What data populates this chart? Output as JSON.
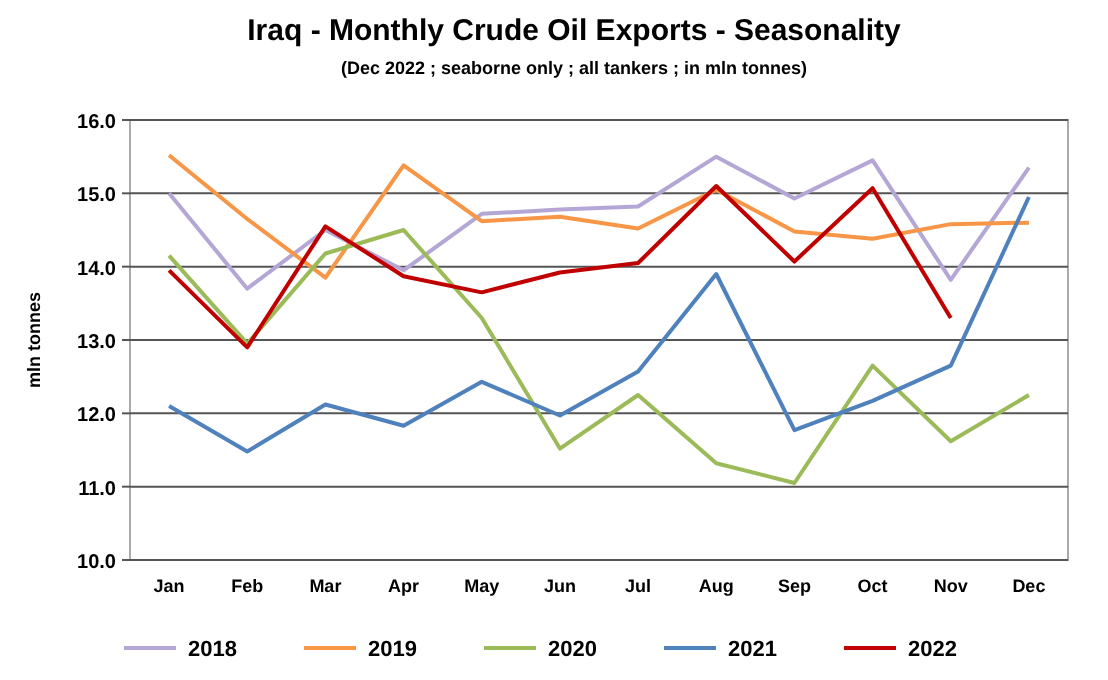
{
  "chart_data": {
    "type": "line",
    "title": "Iraq - Monthly Crude Oil Exports - Seasonality",
    "subtitle": "(Dec 2022 ; seaborne only ; all tankers ; in mln tonnes)",
    "ylabel": "mln tonnes",
    "categories": [
      "Jan",
      "Feb",
      "Mar",
      "Apr",
      "May",
      "Jun",
      "Jul",
      "Aug",
      "Sep",
      "Oct",
      "Nov",
      "Dec"
    ],
    "series": [
      {
        "name": "2018",
        "color": "#b4a7d6",
        "values": [
          15.0,
          13.7,
          14.5,
          13.95,
          14.72,
          14.78,
          14.82,
          15.5,
          14.93,
          15.45,
          13.82,
          15.35
        ]
      },
      {
        "name": "2019",
        "color": "#f79646",
        "values": [
          15.52,
          14.65,
          13.85,
          15.38,
          14.62,
          14.68,
          14.52,
          15.05,
          14.48,
          14.38,
          14.58,
          14.6
        ]
      },
      {
        "name": "2020",
        "color": "#9bbb59",
        "values": [
          14.15,
          12.95,
          14.18,
          14.5,
          13.3,
          11.52,
          12.25,
          11.32,
          11.05,
          12.65,
          11.62,
          12.25
        ]
      },
      {
        "name": "2021",
        "color": "#4f81bd",
        "values": [
          12.1,
          11.48,
          12.12,
          11.83,
          12.43,
          11.97,
          12.57,
          13.9,
          11.77,
          12.17,
          12.65,
          14.95
        ]
      },
      {
        "name": "2022",
        "color": "#c00000",
        "values": [
          13.95,
          12.9,
          14.55,
          13.87,
          13.65,
          13.92,
          14.05,
          15.1,
          14.07,
          15.07,
          13.3,
          null
        ]
      }
    ],
    "ylim": [
      10,
      16
    ],
    "yticks": [
      {
        "value": 10,
        "label": "10.0"
      },
      {
        "value": 11,
        "label": "11.0"
      },
      {
        "value": 12,
        "label": "12.0"
      },
      {
        "value": 13,
        "label": "13.0"
      },
      {
        "value": 14,
        "label": "14.0"
      },
      {
        "value": 15,
        "label": "15.0"
      },
      {
        "value": 16,
        "label": "16.0"
      }
    ],
    "grid": "y",
    "legend": "bottom",
    "marker": "none",
    "line_style": "solid"
  }
}
